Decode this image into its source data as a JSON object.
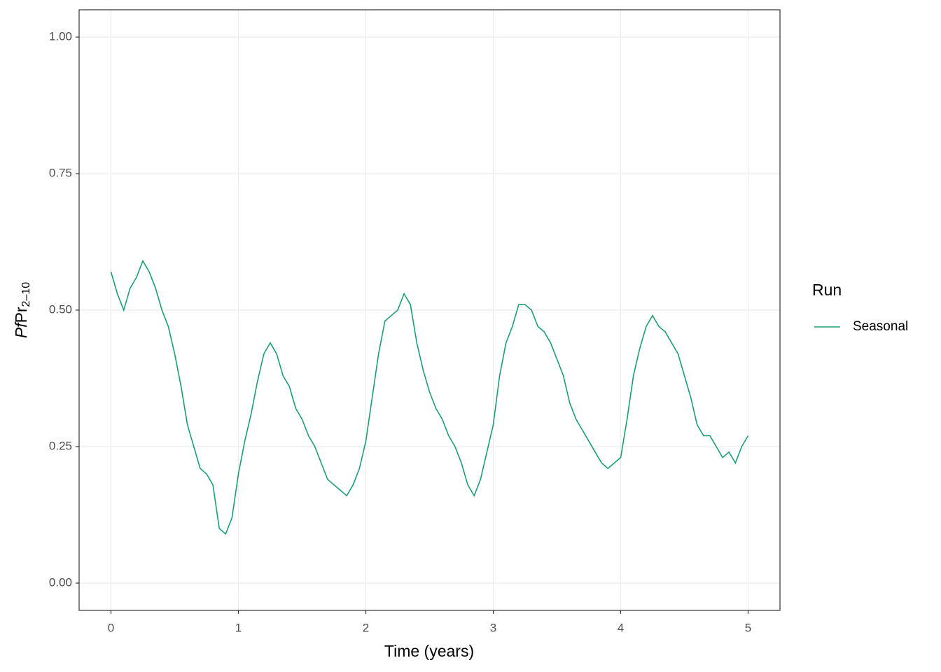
{
  "chart_data": {
    "type": "line",
    "x_label": "Time (years)",
    "y_label": {
      "italic": "Pf",
      "main": "Pr",
      "sub": "2–10"
    },
    "legend_title": "Run",
    "legend": "right",
    "grid": true,
    "xlim": [
      -0.25,
      5.25
    ],
    "xticks": [
      0,
      1,
      2,
      3,
      4,
      5
    ],
    "ylim": [
      -0.05,
      1.05
    ],
    "yticks": [
      {
        "value": 0,
        "label": "0.00"
      },
      {
        "value": 0.25,
        "label": "0.25"
      },
      {
        "value": 0.5,
        "label": "0.50"
      },
      {
        "value": 0.75,
        "label": "0.75"
      },
      {
        "value": 1,
        "label": "1.00"
      }
    ],
    "x": [
      0,
      0.05,
      0.1,
      0.15,
      0.2,
      0.25,
      0.3,
      0.35,
      0.4,
      0.45,
      0.5,
      0.55,
      0.6,
      0.65,
      0.7,
      0.75,
      0.8,
      0.85,
      0.9,
      0.95,
      1.0,
      1.05,
      1.1,
      1.15,
      1.2,
      1.25,
      1.3,
      1.35,
      1.4,
      1.45,
      1.5,
      1.55,
      1.6,
      1.65,
      1.7,
      1.75,
      1.8,
      1.85,
      1.9,
      1.95,
      2.0,
      2.05,
      2.1,
      2.15,
      2.2,
      2.25,
      2.3,
      2.35,
      2.4,
      2.45,
      2.5,
      2.55,
      2.6,
      2.65,
      2.7,
      2.75,
      2.8,
      2.85,
      2.9,
      2.95,
      3.0,
      3.05,
      3.1,
      3.15,
      3.2,
      3.25,
      3.3,
      3.35,
      3.4,
      3.45,
      3.5,
      3.55,
      3.6,
      3.65,
      3.7,
      3.75,
      3.8,
      3.85,
      3.9,
      3.95,
      4.0,
      4.05,
      4.1,
      4.15,
      4.2,
      4.25,
      4.3,
      4.35,
      4.4,
      4.45,
      4.5,
      4.55,
      4.6,
      4.65,
      4.7,
      4.75,
      4.8,
      4.85,
      4.9,
      4.95,
      5.0
    ],
    "series": [
      {
        "name": "Seasonal",
        "color": "#1b9e77",
        "values": [
          0.57,
          0.53,
          0.5,
          0.54,
          0.56,
          0.59,
          0.57,
          0.54,
          0.5,
          0.47,
          0.42,
          0.36,
          0.29,
          0.25,
          0.21,
          0.2,
          0.18,
          0.1,
          0.09,
          0.12,
          0.2,
          0.26,
          0.31,
          0.37,
          0.42,
          0.44,
          0.42,
          0.38,
          0.36,
          0.32,
          0.3,
          0.27,
          0.25,
          0.22,
          0.19,
          0.18,
          0.17,
          0.16,
          0.18,
          0.21,
          0.26,
          0.34,
          0.42,
          0.48,
          0.49,
          0.5,
          0.53,
          0.51,
          0.44,
          0.39,
          0.35,
          0.32,
          0.3,
          0.27,
          0.25,
          0.22,
          0.18,
          0.16,
          0.19,
          0.24,
          0.29,
          0.38,
          0.44,
          0.47,
          0.51,
          0.51,
          0.5,
          0.47,
          0.46,
          0.44,
          0.41,
          0.38,
          0.33,
          0.3,
          0.28,
          0.26,
          0.24,
          0.22,
          0.21,
          0.22,
          0.23,
          0.3,
          0.38,
          0.43,
          0.47,
          0.49,
          0.47,
          0.46,
          0.44,
          0.42,
          0.38,
          0.34,
          0.29,
          0.27,
          0.27,
          0.25,
          0.23,
          0.24,
          0.22,
          0.25,
          0.27
        ]
      }
    ]
  }
}
